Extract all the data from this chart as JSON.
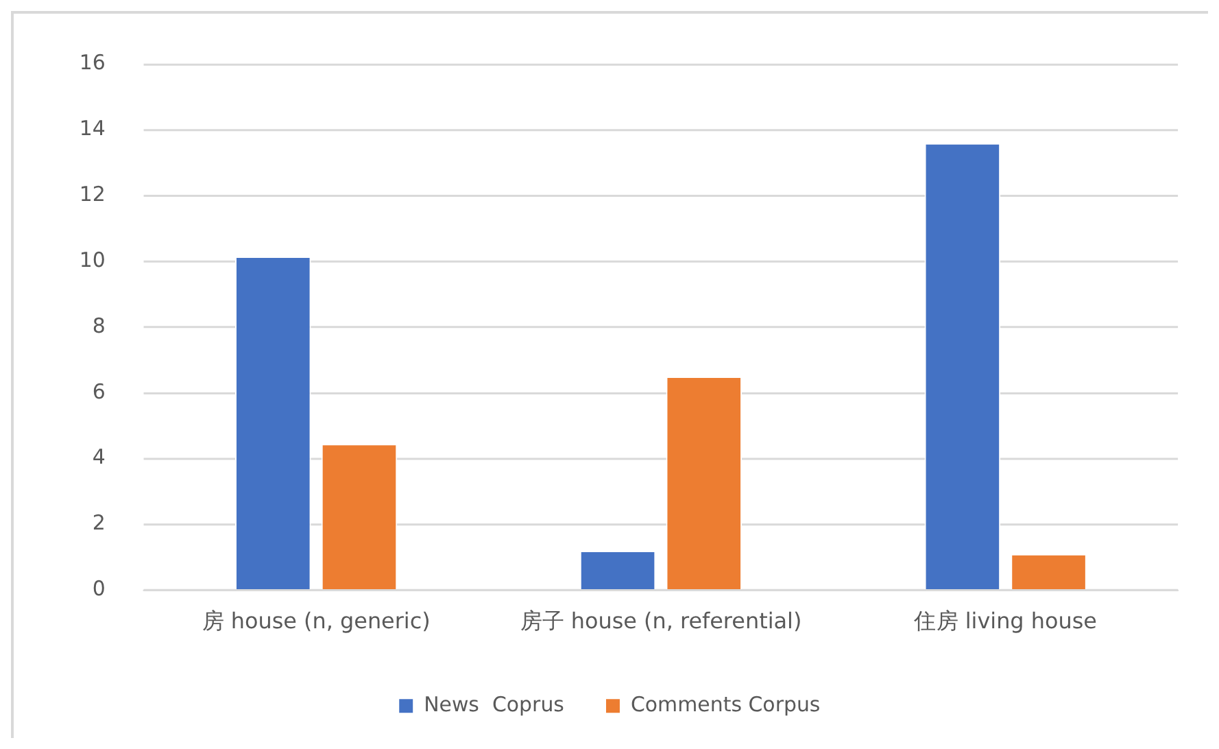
{
  "chart_data": {
    "type": "bar",
    "categories": [
      "房 house (n, generic)",
      "房子 house (n, referential)",
      "住房 living house"
    ],
    "series": [
      {
        "name": "News  Coprus",
        "color": "#4472c4",
        "values": [
          10.15,
          1.2,
          13.6
        ]
      },
      {
        "name": "Comments Corpus",
        "color": "#ed7d31",
        "values": [
          4.45,
          6.5,
          1.1
        ]
      }
    ],
    "ylim": [
      0,
      16
    ],
    "yticks": [
      0,
      2,
      4,
      6,
      8,
      10,
      12,
      14,
      16
    ],
    "grid": "y",
    "legend": "bottom"
  }
}
